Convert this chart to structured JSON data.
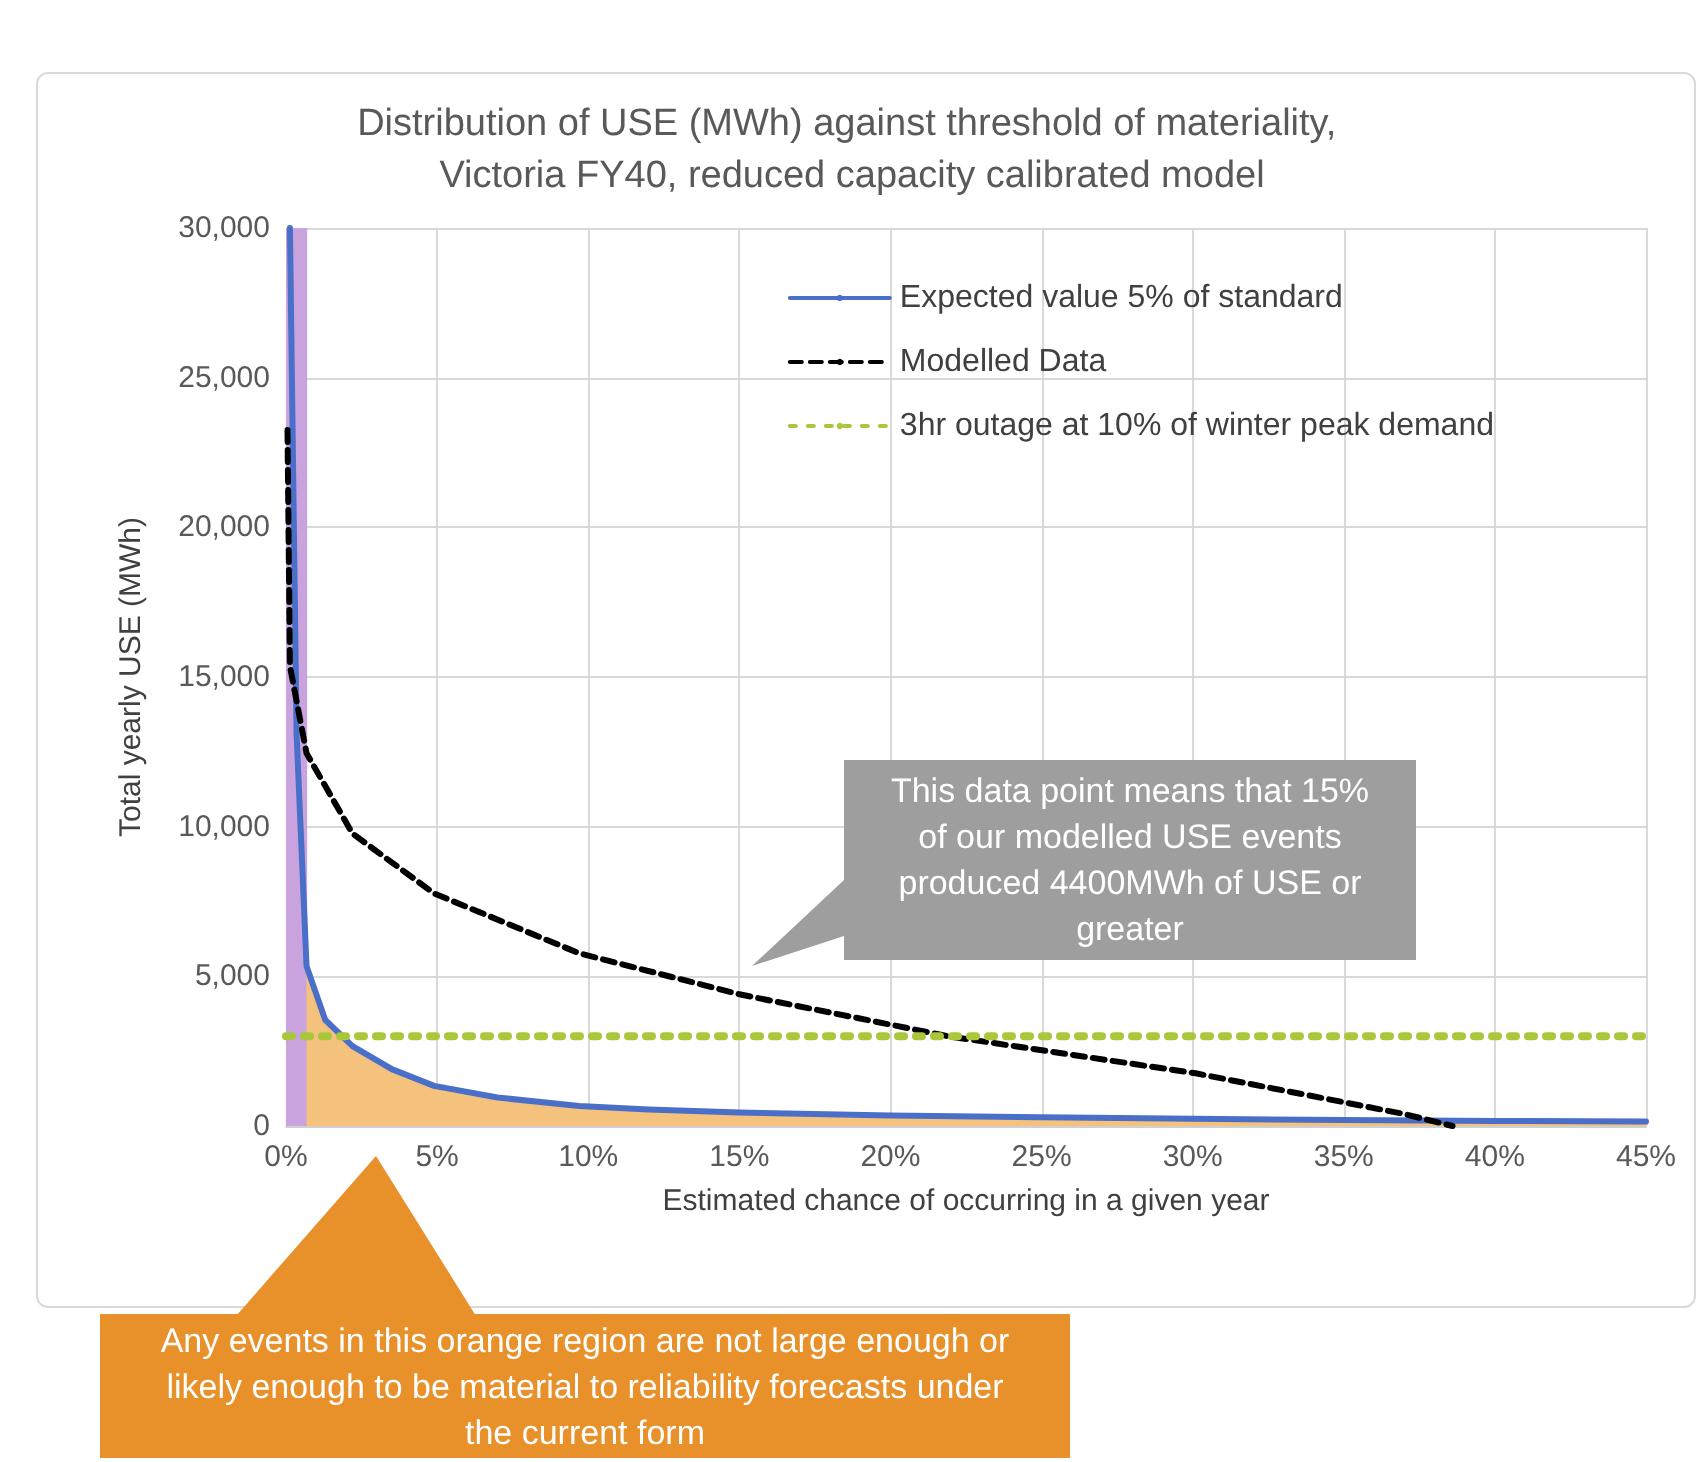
{
  "chart_data": {
    "type": "line",
    "title": "Distribution of USE (MWh) against threshold of materiality, Victoria FY40, reduced capacity calibrated model",
    "xlabel": "Estimated chance of occurring in a given year",
    "ylabel": "Total yearly USE (MWh)",
    "xlim": [
      0,
      45
    ],
    "xticks": [
      {
        "value": 0,
        "label": "0%"
      },
      {
        "value": 5,
        "label": "5%"
      },
      {
        "value": 10,
        "label": "10%"
      },
      {
        "value": 15,
        "label": "15%"
      },
      {
        "value": 20,
        "label": "20%"
      },
      {
        "value": 25,
        "label": "25%"
      },
      {
        "value": 30,
        "label": "30%"
      },
      {
        "value": 35,
        "label": "35%"
      },
      {
        "value": 40,
        "label": "40%"
      },
      {
        "value": 45,
        "label": "45%"
      }
    ],
    "ylim": [
      0,
      30000
    ],
    "yticks": [
      0,
      {
        "value": 5000,
        "label": "5,000"
      },
      {
        "value": 10000,
        "label": "10,000"
      },
      {
        "value": 15000,
        "label": "15,000"
      },
      {
        "value": 20000,
        "label": "20,000"
      },
      {
        "value": 25000,
        "label": "25,000"
      },
      {
        "value": 30000,
        "label": "30,000"
      }
    ],
    "grid": true,
    "legend": "top right",
    "marker": "none",
    "series": [
      {
        "type": "area",
        "color": "#f5c27e",
        "x": [
          0.68,
          1.3,
          2.2,
          3.5,
          4.9,
          7,
          9.7,
          12,
          15,
          20,
          25,
          30,
          35,
          40,
          45
        ],
        "values": [
          5340,
          3540,
          2670,
          1900,
          1340,
          950,
          670,
          550,
          450,
          350,
          290,
          240,
          200,
          170,
          150
        ]
      },
      {
        "name": "Expected value 5% of standard",
        "color": "#4a6fc9",
        "line_style": "solid",
        "x": [
          0.13,
          0.35,
          0.68,
          1.3,
          2.2,
          3.5,
          4.9,
          7,
          9.7,
          12,
          15,
          20,
          25,
          30,
          35,
          40,
          45
        ],
        "values": [
          30000,
          13100,
          5340,
          3540,
          2670,
          1900,
          1340,
          950,
          670,
          550,
          450,
          350,
          290,
          240,
          200,
          170,
          150
        ]
      },
      {
        "name": "Modelled Data",
        "color": "#000000",
        "line_style": "dashed",
        "x": [
          0.05,
          0.13,
          0.68,
          2.2,
          4.9,
          9.7,
          15,
          21.9,
          30.1,
          37,
          38.6
        ],
        "values": [
          23250,
          15360,
          12450,
          9770,
          7770,
          5770,
          4400,
          3000,
          1760,
          400,
          0
        ]
      },
      {
        "name": "3hr outage at 10% of winter peak demand",
        "color": "#a8c83a",
        "line_style": "dotted",
        "x": [
          0,
          45
        ],
        "values": [
          3000,
          3000
        ]
      }
    ],
    "bands": [
      {
        "axis": "x",
        "from": 0,
        "to": 0.7,
        "color": "#c9a3dd"
      }
    ],
    "annotations": [
      "This data point means that 15% of our modelled USE events produced 4400MWh of USE or greater",
      "Any events in this orange region are not large enough or likely enough to be material to reliability forecasts under the current form"
    ]
  }
}
